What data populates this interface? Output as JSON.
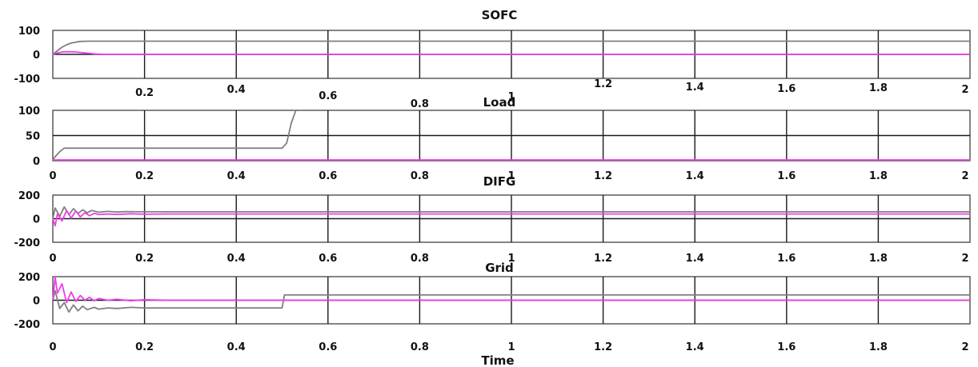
{
  "figure": {
    "xlabel": "Time",
    "background": "#ffffff",
    "grid_color": "#1a1a1a",
    "colors": {
      "gray": "#808080",
      "magenta": "#ee3ee8"
    }
  },
  "chart_data": [
    {
      "type": "line",
      "title": "SOFC",
      "xlim": [
        0,
        2
      ],
      "ylim": [
        -100,
        100
      ],
      "xticks": [
        "0.2",
        "0.4",
        "0.6",
        "0.8",
        "1",
        "1.2",
        "1.4",
        "1.6",
        "1.8",
        "2"
      ],
      "yticks": [
        "100",
        "0",
        "-100"
      ],
      "grid": true,
      "series": [
        {
          "color": "gray",
          "x": [
            0,
            0.01,
            0.02,
            0.03,
            0.04,
            0.05,
            0.06,
            0.08,
            0.1,
            0.12,
            2
          ],
          "y": [
            0,
            15,
            30,
            40,
            47,
            51,
            54,
            55,
            55,
            55,
            55
          ]
        },
        {
          "color": "magenta",
          "x": [
            0,
            0.01,
            0.02,
            0.03,
            0.05,
            0.07,
            0.09,
            0.11,
            2
          ],
          "y": [
            0,
            6,
            10,
            11,
            10,
            6,
            2,
            0,
            0
          ]
        }
      ]
    },
    {
      "type": "line",
      "title": "Load",
      "xlim": [
        0,
        2
      ],
      "ylim": [
        0,
        100
      ],
      "xticks": [
        "0",
        "0.2",
        "0.4",
        "0.6",
        "0.8",
        "1",
        "1.2",
        "1.4",
        "1.6",
        "1.8",
        "2"
      ],
      "yticks": [
        "100",
        "50",
        "0"
      ],
      "grid": true,
      "series": [
        {
          "color": "gray",
          "x": [
            0,
            0.005,
            0.015,
            0.025,
            0.5,
            0.51,
            0.52,
            0.53
          ],
          "y": [
            0,
            8,
            18,
            25,
            25,
            35,
            75,
            100
          ]
        },
        {
          "color": "magenta",
          "x": [
            0,
            2
          ],
          "y": [
            -3,
            -3
          ]
        }
      ]
    },
    {
      "type": "line",
      "title": "DIFG",
      "xlim": [
        0,
        2
      ],
      "ylim": [
        -200,
        200
      ],
      "xticks": [
        "0",
        "0.2",
        "0.4",
        "0.6",
        "0.8",
        "1",
        "1.2",
        "1.4",
        "1.6",
        "1.8",
        "2"
      ],
      "yticks": [
        "200",
        "0",
        "-200"
      ],
      "grid": true,
      "series": [
        {
          "color": "gray",
          "x": [
            0,
            0.005,
            0.015,
            0.025,
            0.035,
            0.045,
            0.055,
            0.065,
            0.075,
            0.085,
            0.1,
            0.12,
            0.14,
            0.16,
            0.2,
            0.25,
            2
          ],
          "y": [
            0,
            90,
            20,
            100,
            35,
            85,
            45,
            75,
            50,
            70,
            55,
            62,
            56,
            60,
            58,
            58,
            58
          ]
        },
        {
          "color": "magenta",
          "x": [
            0,
            0.005,
            0.01,
            0.02,
            0.03,
            0.04,
            0.05,
            0.06,
            0.07,
            0.08,
            0.09,
            0.1,
            0.12,
            0.14,
            0.17,
            0.2,
            0.25,
            2
          ],
          "y": [
            0,
            -60,
            40,
            -20,
            70,
            5,
            65,
            15,
            50,
            25,
            45,
            35,
            40,
            36,
            42,
            38,
            40,
            40
          ]
        }
      ]
    },
    {
      "type": "line",
      "title": "Grid",
      "xlim": [
        0,
        2
      ],
      "ylim": [
        -200,
        200
      ],
      "xticks": [
        "0",
        "0.2",
        "0.4",
        "0.6",
        "0.8",
        "1",
        "1.2",
        "1.4",
        "1.6",
        "1.8",
        "2"
      ],
      "yticks": [
        "200",
        "0",
        "-200"
      ],
      "grid": true,
      "series": [
        {
          "color": "gray",
          "x": [
            0,
            0.005,
            0.015,
            0.025,
            0.035,
            0.045,
            0.055,
            0.065,
            0.075,
            0.09,
            0.1,
            0.12,
            0.14,
            0.17,
            0.2,
            0.3,
            0.5,
            0.505,
            2
          ],
          "y": [
            0,
            80,
            -70,
            -20,
            -100,
            -40,
            -90,
            -50,
            -80,
            -60,
            -75,
            -65,
            -70,
            -60,
            -65,
            -65,
            -65,
            45,
            45
          ]
        },
        {
          "color": "magenta",
          "x": [
            0,
            0.005,
            0.01,
            0.02,
            0.03,
            0.04,
            0.05,
            0.06,
            0.07,
            0.08,
            0.09,
            0.1,
            0.12,
            0.14,
            0.17,
            0.2,
            0.25,
            0.3,
            2
          ],
          "y": [
            0,
            200,
            60,
            140,
            -20,
            70,
            -10,
            40,
            0,
            25,
            -5,
            15,
            0,
            8,
            -5,
            5,
            0,
            0,
            0
          ]
        }
      ]
    }
  ]
}
